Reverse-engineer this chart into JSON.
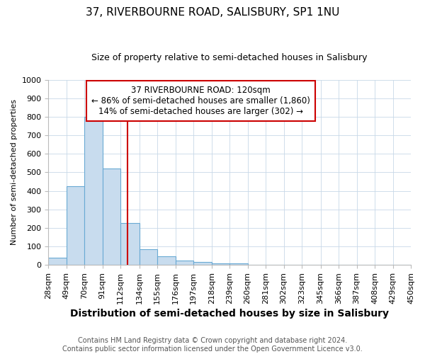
{
  "title": "37, RIVERBOURNE ROAD, SALISBURY, SP1 1NU",
  "subtitle": "Size of property relative to semi-detached houses in Salisbury",
  "xlabel": "Distribution of semi-detached houses by size in Salisbury",
  "ylabel": "Number of semi-detached properties",
  "footer_line1": "Contains HM Land Registry data © Crown copyright and database right 2024.",
  "footer_line2": "Contains public sector information licensed under the Open Government Licence v3.0.",
  "bin_edges": [
    28,
    49,
    70,
    91,
    112,
    134,
    155,
    176,
    197,
    218,
    239,
    260,
    281,
    302,
    323,
    345,
    366,
    387,
    408,
    429,
    450
  ],
  "bin_labels": [
    "28sqm",
    "49sqm",
    "70sqm",
    "91sqm",
    "112sqm",
    "134sqm",
    "155sqm",
    "176sqm",
    "197sqm",
    "218sqm",
    "239sqm",
    "260sqm",
    "281sqm",
    "302sqm",
    "323sqm",
    "345sqm",
    "366sqm",
    "387sqm",
    "408sqm",
    "429sqm",
    "450sqm"
  ],
  "bar_heights": [
    40,
    425,
    800,
    520,
    225,
    85,
    48,
    25,
    15,
    10,
    10,
    0,
    0,
    0,
    0,
    0,
    0,
    0,
    0,
    0
  ],
  "bar_color": "#c8dcee",
  "bar_edge_color": "#6aaad4",
  "property_size": 120,
  "property_label": "37 RIVERBOURNE ROAD: 120sqm",
  "annotation_line1": "← 86% of semi-detached houses are smaller (1,860)",
  "annotation_line2": "14% of semi-detached houses are larger (302) →",
  "vline_color": "#cc0000",
  "annotation_box_facecolor": "#ffffff",
  "annotation_box_edgecolor": "#cc0000",
  "ylim": [
    0,
    1000
  ],
  "yticks": [
    0,
    100,
    200,
    300,
    400,
    500,
    600,
    700,
    800,
    900,
    1000
  ],
  "grid_color": "#c8d8e8",
  "bg_color": "#ffffff",
  "title_fontsize": 11,
  "subtitle_fontsize": 9,
  "xlabel_fontsize": 10,
  "ylabel_fontsize": 8,
  "tick_fontsize": 8,
  "footer_fontsize": 7,
  "annotation_fontsize": 8.5
}
